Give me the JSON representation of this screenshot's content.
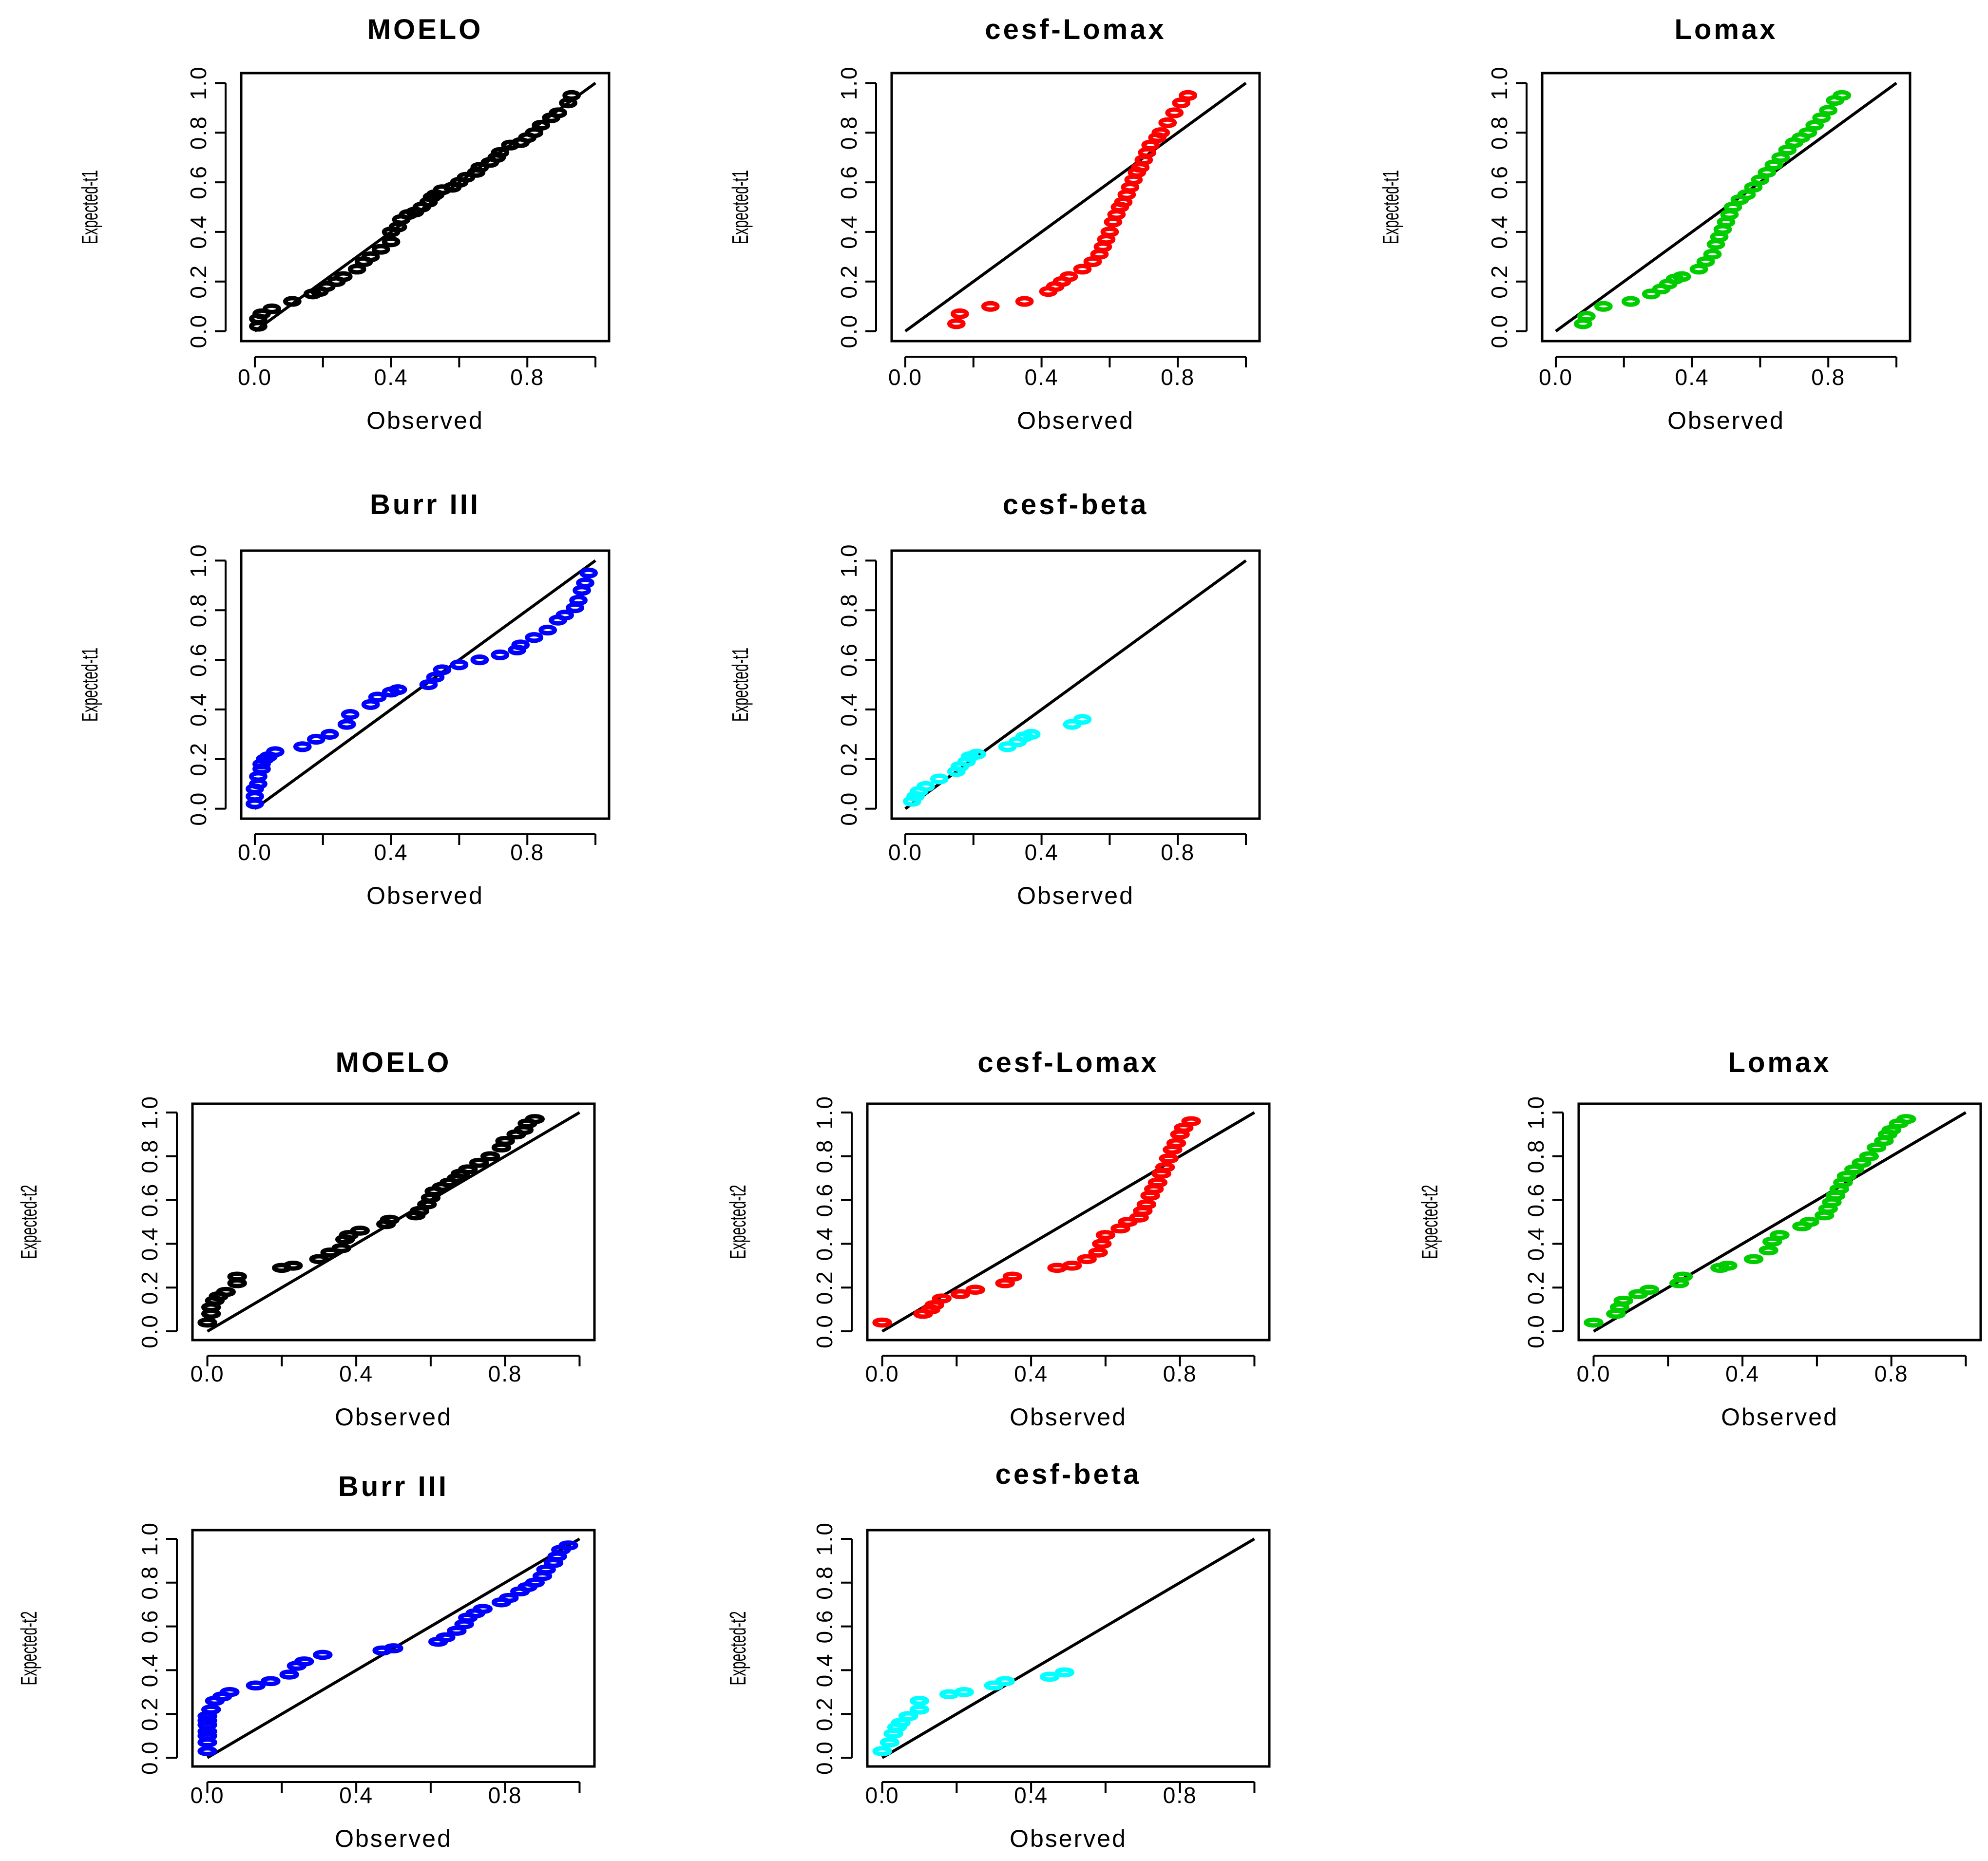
{
  "chart_data": [
    {
      "type": "scatter",
      "title": "MOELO",
      "xlabel": "Observed",
      "ylabel": "Expected-t1",
      "color": "#000000",
      "xlim": [
        0,
        1
      ],
      "ylim": [
        0,
        1
      ],
      "xticks": [
        "0.0",
        "0.4",
        "0.8"
      ],
      "yticks": [
        "0.0",
        "0.2",
        "0.4",
        "0.6",
        "0.8",
        "1.0"
      ],
      "reference_line": {
        "from": [
          0,
          0
        ],
        "to": [
          1,
          1
        ]
      },
      "x": [
        0.01,
        0.01,
        0.02,
        0.05,
        0.11,
        0.17,
        0.19,
        0.21,
        0.24,
        0.26,
        0.3,
        0.32,
        0.34,
        0.37,
        0.4,
        0.4,
        0.42,
        0.43,
        0.45,
        0.47,
        0.49,
        0.51,
        0.52,
        0.53,
        0.55,
        0.58,
        0.6,
        0.62,
        0.65,
        0.66,
        0.69,
        0.71,
        0.72,
        0.75,
        0.78,
        0.8,
        0.82,
        0.84,
        0.87,
        0.89,
        0.92,
        0.93
      ],
      "y": [
        0.02,
        0.05,
        0.07,
        0.09,
        0.12,
        0.15,
        0.16,
        0.18,
        0.2,
        0.22,
        0.25,
        0.28,
        0.3,
        0.33,
        0.36,
        0.4,
        0.42,
        0.45,
        0.47,
        0.48,
        0.5,
        0.52,
        0.54,
        0.55,
        0.57,
        0.58,
        0.6,
        0.62,
        0.64,
        0.66,
        0.68,
        0.7,
        0.72,
        0.75,
        0.76,
        0.78,
        0.8,
        0.83,
        0.86,
        0.88,
        0.92,
        0.95
      ]
    },
    {
      "type": "scatter",
      "title": "cesf-Lomax",
      "xlabel": "Observed",
      "ylabel": "Expected-t1",
      "color": "#ff0000",
      "xlim": [
        0,
        1
      ],
      "ylim": [
        0,
        1
      ],
      "xticks": [
        "0.0",
        "0.4",
        "0.8"
      ],
      "yticks": [
        "0.0",
        "0.2",
        "0.4",
        "0.6",
        "0.8",
        "1.0"
      ],
      "reference_line": {
        "from": [
          0,
          0
        ],
        "to": [
          1,
          1
        ]
      },
      "x": [
        0.15,
        0.16,
        0.25,
        0.35,
        0.42,
        0.44,
        0.46,
        0.48,
        0.52,
        0.55,
        0.57,
        0.58,
        0.59,
        0.6,
        0.61,
        0.62,
        0.63,
        0.64,
        0.65,
        0.66,
        0.67,
        0.68,
        0.69,
        0.7,
        0.71,
        0.72,
        0.74,
        0.75,
        0.77,
        0.79,
        0.81,
        0.83
      ],
      "y": [
        0.03,
        0.07,
        0.1,
        0.12,
        0.16,
        0.18,
        0.2,
        0.22,
        0.25,
        0.28,
        0.31,
        0.34,
        0.37,
        0.4,
        0.44,
        0.47,
        0.5,
        0.52,
        0.55,
        0.58,
        0.61,
        0.64,
        0.66,
        0.69,
        0.72,
        0.75,
        0.78,
        0.8,
        0.84,
        0.88,
        0.92,
        0.95
      ]
    },
    {
      "type": "scatter",
      "title": "Lomax",
      "xlabel": "Observed",
      "ylabel": "Expected-t1",
      "color": "#00cc00",
      "xlim": [
        0,
        1
      ],
      "ylim": [
        0,
        1
      ],
      "xticks": [
        "0.0",
        "0.4",
        "0.8"
      ],
      "yticks": [
        "0.0",
        "0.2",
        "0.4",
        "0.6",
        "0.8",
        "1.0"
      ],
      "reference_line": {
        "from": [
          0,
          0
        ],
        "to": [
          1,
          1
        ]
      },
      "x": [
        0.08,
        0.09,
        0.14,
        0.22,
        0.28,
        0.31,
        0.33,
        0.35,
        0.37,
        0.42,
        0.44,
        0.46,
        0.47,
        0.48,
        0.49,
        0.5,
        0.51,
        0.52,
        0.54,
        0.56,
        0.58,
        0.6,
        0.62,
        0.64,
        0.66,
        0.68,
        0.7,
        0.72,
        0.74,
        0.76,
        0.78,
        0.8,
        0.82,
        0.84
      ],
      "y": [
        0.03,
        0.06,
        0.1,
        0.12,
        0.15,
        0.17,
        0.19,
        0.21,
        0.22,
        0.25,
        0.28,
        0.31,
        0.35,
        0.38,
        0.41,
        0.44,
        0.47,
        0.5,
        0.53,
        0.55,
        0.58,
        0.61,
        0.64,
        0.67,
        0.7,
        0.73,
        0.76,
        0.78,
        0.8,
        0.83,
        0.86,
        0.89,
        0.93,
        0.95
      ]
    },
    {
      "type": "scatter",
      "title": "Burr III",
      "xlabel": "Observed",
      "ylabel": "Expected-t1",
      "color": "#0000ff",
      "xlim": [
        0,
        1
      ],
      "ylim": [
        0,
        1
      ],
      "xticks": [
        "0.0",
        "0.4",
        "0.8"
      ],
      "yticks": [
        "0.0",
        "0.2",
        "0.4",
        "0.6",
        "0.8",
        "1.0"
      ],
      "reference_line": {
        "from": [
          0,
          0
        ],
        "to": [
          1,
          1
        ]
      },
      "x": [
        0.0,
        0.0,
        0.0,
        0.01,
        0.01,
        0.02,
        0.02,
        0.03,
        0.04,
        0.06,
        0.14,
        0.18,
        0.22,
        0.27,
        0.28,
        0.34,
        0.36,
        0.4,
        0.42,
        0.51,
        0.53,
        0.55,
        0.6,
        0.66,
        0.72,
        0.77,
        0.78,
        0.82,
        0.86,
        0.89,
        0.91,
        0.94,
        0.95,
        0.96,
        0.97,
        0.98
      ],
      "y": [
        0.02,
        0.05,
        0.08,
        0.1,
        0.13,
        0.16,
        0.18,
        0.2,
        0.21,
        0.23,
        0.25,
        0.28,
        0.3,
        0.34,
        0.38,
        0.42,
        0.45,
        0.47,
        0.48,
        0.5,
        0.53,
        0.56,
        0.58,
        0.6,
        0.62,
        0.64,
        0.66,
        0.69,
        0.72,
        0.76,
        0.78,
        0.81,
        0.84,
        0.88,
        0.91,
        0.95
      ]
    },
    {
      "type": "scatter",
      "title": "cesf-beta",
      "xlabel": "Observed",
      "ylabel": "Expected-t1",
      "color": "#00ffff",
      "xlim": [
        0,
        1
      ],
      "ylim": [
        0,
        1
      ],
      "xticks": [
        "0.0",
        "0.4",
        "0.8"
      ],
      "yticks": [
        "0.0",
        "0.2",
        "0.4",
        "0.6",
        "0.8",
        "1.0"
      ],
      "reference_line": {
        "from": [
          0,
          0
        ],
        "to": [
          1,
          1
        ]
      },
      "x": [
        0.02,
        0.03,
        0.04,
        0.06,
        0.1,
        0.15,
        0.16,
        0.18,
        0.19,
        0.21,
        0.3,
        0.33,
        0.35,
        0.37,
        0.49,
        0.52
      ],
      "y": [
        0.03,
        0.05,
        0.07,
        0.09,
        0.12,
        0.15,
        0.17,
        0.19,
        0.21,
        0.22,
        0.25,
        0.27,
        0.29,
        0.3,
        0.34,
        0.36
      ]
    },
    {
      "type": "scatter",
      "title": "MOELO",
      "xlabel": "Observed",
      "ylabel": "Expected-t2",
      "color": "#000000",
      "xlim": [
        0,
        1
      ],
      "ylim": [
        0,
        1
      ],
      "xticks": [
        "0.0",
        "0.4",
        "0.8"
      ],
      "yticks": [
        "0.0",
        "0.2",
        "0.4",
        "0.6",
        "0.8",
        "1.0"
      ],
      "reference_line": {
        "from": [
          0,
          0
        ],
        "to": [
          1,
          1
        ]
      },
      "x": [
        0.0,
        0.01,
        0.01,
        0.02,
        0.03,
        0.05,
        0.08,
        0.08,
        0.2,
        0.23,
        0.3,
        0.33,
        0.36,
        0.37,
        0.38,
        0.41,
        0.48,
        0.49,
        0.56,
        0.57,
        0.59,
        0.6,
        0.61,
        0.63,
        0.65,
        0.67,
        0.68,
        0.7,
        0.73,
        0.76,
        0.79,
        0.8,
        0.83,
        0.85,
        0.86,
        0.88
      ],
      "y": [
        0.04,
        0.08,
        0.11,
        0.14,
        0.16,
        0.18,
        0.22,
        0.25,
        0.29,
        0.3,
        0.33,
        0.36,
        0.38,
        0.42,
        0.44,
        0.46,
        0.49,
        0.51,
        0.53,
        0.55,
        0.58,
        0.61,
        0.64,
        0.66,
        0.68,
        0.7,
        0.72,
        0.74,
        0.77,
        0.8,
        0.84,
        0.87,
        0.9,
        0.92,
        0.95,
        0.97
      ]
    },
    {
      "type": "scatter",
      "title": "cesf-Lomax",
      "xlabel": "Observed",
      "ylabel": "Expected-t2",
      "color": "#ff0000",
      "xlim": [
        0,
        1
      ],
      "ylim": [
        0,
        1
      ],
      "xticks": [
        "0.0",
        "0.4",
        "0.8"
      ],
      "yticks": [
        "0.0",
        "0.2",
        "0.4",
        "0.6",
        "0.8",
        "1.0"
      ],
      "reference_line": {
        "from": [
          0,
          0
        ],
        "to": [
          1,
          1
        ]
      },
      "x": [
        0.0,
        0.11,
        0.13,
        0.14,
        0.16,
        0.21,
        0.25,
        0.33,
        0.35,
        0.47,
        0.51,
        0.55,
        0.58,
        0.59,
        0.6,
        0.64,
        0.66,
        0.69,
        0.7,
        0.71,
        0.72,
        0.73,
        0.74,
        0.75,
        0.76,
        0.77,
        0.78,
        0.79,
        0.8,
        0.81,
        0.83
      ],
      "y": [
        0.04,
        0.08,
        0.1,
        0.12,
        0.15,
        0.17,
        0.19,
        0.22,
        0.25,
        0.29,
        0.3,
        0.33,
        0.36,
        0.4,
        0.44,
        0.47,
        0.5,
        0.52,
        0.55,
        0.58,
        0.62,
        0.65,
        0.68,
        0.72,
        0.75,
        0.79,
        0.83,
        0.86,
        0.9,
        0.93,
        0.96
      ]
    },
    {
      "type": "scatter",
      "title": "Lomax",
      "xlabel": "Observed",
      "ylabel": "Expected-t2",
      "color": "#00cc00",
      "xlim": [
        0,
        1
      ],
      "ylim": [
        0,
        1
      ],
      "xticks": [
        "0.0",
        "0.4",
        "0.8"
      ],
      "yticks": [
        "0.0",
        "0.2",
        "0.4",
        "0.6",
        "0.8",
        "1.0"
      ],
      "reference_line": {
        "from": [
          0,
          0
        ],
        "to": [
          1,
          1
        ]
      },
      "x": [
        0.0,
        0.06,
        0.07,
        0.08,
        0.12,
        0.15,
        0.23,
        0.24,
        0.34,
        0.36,
        0.43,
        0.47,
        0.48,
        0.5,
        0.56,
        0.58,
        0.62,
        0.63,
        0.64,
        0.65,
        0.66,
        0.67,
        0.68,
        0.7,
        0.72,
        0.74,
        0.76,
        0.78,
        0.79,
        0.8,
        0.82,
        0.84
      ],
      "y": [
        0.04,
        0.08,
        0.11,
        0.14,
        0.17,
        0.19,
        0.22,
        0.25,
        0.29,
        0.3,
        0.33,
        0.37,
        0.41,
        0.44,
        0.48,
        0.5,
        0.53,
        0.56,
        0.59,
        0.62,
        0.65,
        0.68,
        0.71,
        0.74,
        0.77,
        0.8,
        0.84,
        0.87,
        0.9,
        0.92,
        0.95,
        0.97
      ]
    },
    {
      "type": "scatter",
      "title": "Burr III",
      "xlabel": "Observed",
      "ylabel": "Expected-t2",
      "color": "#0000ff",
      "xlim": [
        0,
        1
      ],
      "ylim": [
        0,
        1
      ],
      "xticks": [
        "0.0",
        "0.4",
        "0.8"
      ],
      "yticks": [
        "0.0",
        "0.2",
        "0.4",
        "0.6",
        "0.8",
        "1.0"
      ],
      "reference_line": {
        "from": [
          0,
          0
        ],
        "to": [
          1,
          1
        ]
      },
      "x": [
        0.0,
        0.0,
        0.0,
        0.0,
        0.0,
        0.0,
        0.0,
        0.01,
        0.02,
        0.04,
        0.06,
        0.13,
        0.17,
        0.22,
        0.24,
        0.26,
        0.31,
        0.47,
        0.5,
        0.62,
        0.64,
        0.67,
        0.69,
        0.7,
        0.72,
        0.74,
        0.79,
        0.81,
        0.84,
        0.86,
        0.88,
        0.9,
        0.91,
        0.93,
        0.94,
        0.95,
        0.97
      ],
      "y": [
        0.03,
        0.07,
        0.1,
        0.12,
        0.15,
        0.17,
        0.19,
        0.22,
        0.26,
        0.28,
        0.3,
        0.33,
        0.35,
        0.38,
        0.42,
        0.44,
        0.47,
        0.49,
        0.5,
        0.53,
        0.55,
        0.58,
        0.61,
        0.64,
        0.66,
        0.68,
        0.71,
        0.73,
        0.76,
        0.78,
        0.8,
        0.83,
        0.86,
        0.89,
        0.92,
        0.95,
        0.97
      ]
    },
    {
      "type": "scatter",
      "title": "cesf-beta",
      "xlabel": "Observed",
      "ylabel": "Expected-t2",
      "color": "#00ffff",
      "xlim": [
        0,
        1
      ],
      "ylim": [
        0,
        1
      ],
      "xticks": [
        "0.0",
        "0.4",
        "0.8"
      ],
      "yticks": [
        "0.0",
        "0.2",
        "0.4",
        "0.6",
        "0.8",
        "1.0"
      ],
      "reference_line": {
        "from": [
          0,
          0
        ],
        "to": [
          1,
          1
        ]
      },
      "x": [
        0.0,
        0.02,
        0.03,
        0.04,
        0.05,
        0.07,
        0.1,
        0.1,
        0.18,
        0.22,
        0.3,
        0.33,
        0.45,
        0.49
      ],
      "y": [
        0.03,
        0.07,
        0.11,
        0.14,
        0.16,
        0.19,
        0.22,
        0.26,
        0.29,
        0.3,
        0.33,
        0.35,
        0.37,
        0.39
      ]
    }
  ]
}
